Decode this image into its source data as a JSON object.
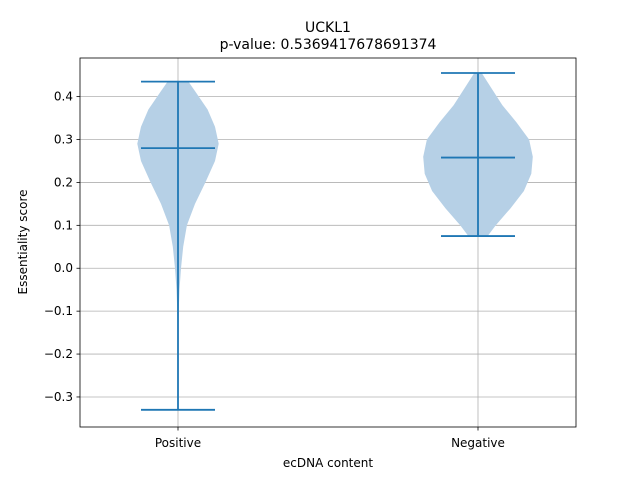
{
  "chart_data": {
    "type": "violin",
    "title": "UCKL1",
    "subtitle": "p-value: 0.5369417678691374",
    "xlabel": "ecDNA content",
    "ylabel": "Essentiality score",
    "categories": [
      "Positive",
      "Negative"
    ],
    "ylim": [
      -0.37,
      0.49
    ],
    "yticks": [
      -0.3,
      -0.2,
      -0.1,
      0.0,
      0.1,
      0.2,
      0.3,
      0.4
    ],
    "ytick_labels": [
      "−0.3",
      "−0.2",
      "−0.1",
      "0.0",
      "0.1",
      "0.2",
      "0.3",
      "0.4"
    ],
    "grid": true,
    "colors": {
      "body": "#b6d0e6",
      "lines": "#1f77b4",
      "grid": "#b0b0b0"
    },
    "violins": [
      {
        "category": "Positive",
        "min": -0.33,
        "max": 0.435,
        "median": 0.28,
        "density": [
          [
            -0.33,
            0.002
          ],
          [
            -0.2,
            0.003
          ],
          [
            -0.1,
            0.01
          ],
          [
            -0.05,
            0.02
          ],
          [
            0.0,
            0.04
          ],
          [
            0.05,
            0.07
          ],
          [
            0.1,
            0.12
          ],
          [
            0.15,
            0.23
          ],
          [
            0.2,
            0.37
          ],
          [
            0.25,
            0.5
          ],
          [
            0.29,
            0.55
          ],
          [
            0.33,
            0.5
          ],
          [
            0.37,
            0.4
          ],
          [
            0.41,
            0.24
          ],
          [
            0.435,
            0.14
          ]
        ]
      },
      {
        "category": "Negative",
        "min": 0.075,
        "max": 0.455,
        "median": 0.258,
        "density": [
          [
            0.075,
            0.13
          ],
          [
            0.1,
            0.24
          ],
          [
            0.14,
            0.44
          ],
          [
            0.18,
            0.62
          ],
          [
            0.22,
            0.72
          ],
          [
            0.26,
            0.74
          ],
          [
            0.3,
            0.69
          ],
          [
            0.34,
            0.52
          ],
          [
            0.38,
            0.33
          ],
          [
            0.42,
            0.18
          ],
          [
            0.455,
            0.05
          ]
        ]
      }
    ]
  }
}
